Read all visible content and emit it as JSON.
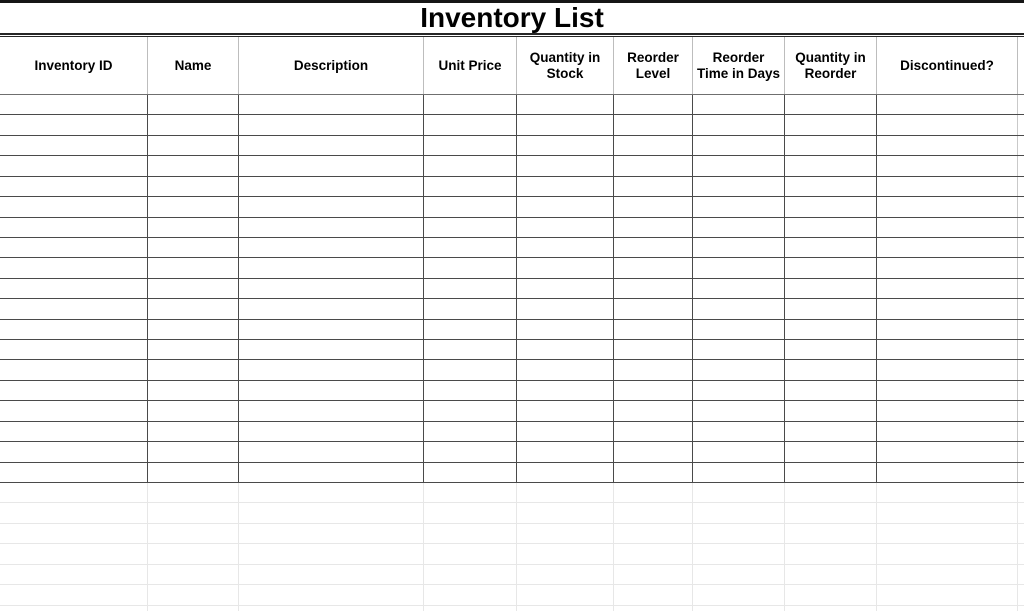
{
  "title": "Inventory List",
  "columns": [
    {
      "label": "Inventory ID"
    },
    {
      "label": "Name"
    },
    {
      "label": "Description"
    },
    {
      "label": "Unit Price"
    },
    {
      "label": "Quantity in Stock"
    },
    {
      "label": "Reorder Level"
    },
    {
      "label": "Reorder Time in Days"
    },
    {
      "label": "Quantity in Reorder"
    },
    {
      "label": "Discontinued?"
    }
  ],
  "table": {
    "empty_row_count": 19,
    "cell_value": ""
  },
  "gridline_area": {
    "row_count": 7
  },
  "colors": {
    "background": "#ffffff",
    "text": "#000000",
    "title_rule": "#161616",
    "table_border_dark": "#4a4a4a",
    "header_separator": "#bdbdbd",
    "faint_gridline": "#e7e7e7"
  }
}
